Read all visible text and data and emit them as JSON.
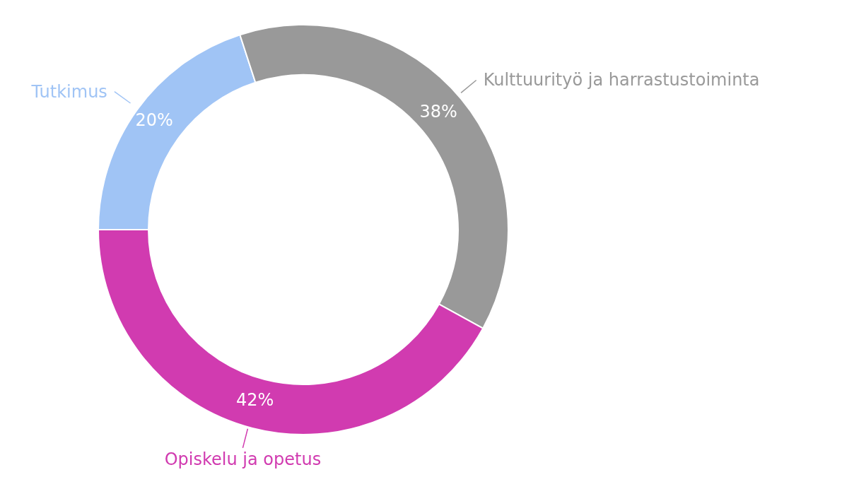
{
  "chart_data": {
    "type": "donut",
    "categories": [
      "Tutkimus",
      "Kulttuurityö ja harrastustoiminta",
      "Opiskelu ja opetus"
    ],
    "values": [
      20,
      38,
      42
    ],
    "colors": [
      "#a0c4f5",
      "#999999",
      "#d13bb0"
    ],
    "value_labels": [
      "20%",
      "38%",
      "42%"
    ]
  }
}
